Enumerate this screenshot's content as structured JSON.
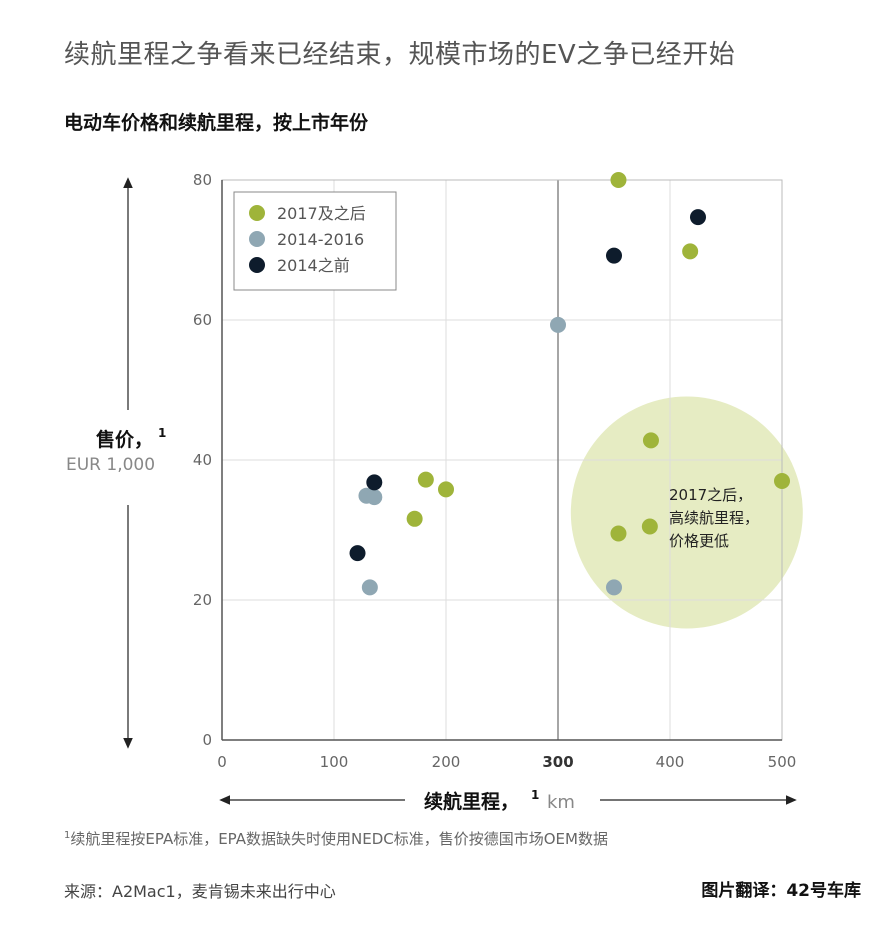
{
  "headline": "续航里程之争看来已经结束，规模市场的EV之争已经开始",
  "footnote": {
    "mark": "1",
    "text": "续航里程按EPA标准，EPA数据缺失时使用NEDC标准，售价按德国市场OEM数据"
  },
  "source": "来源：A2Mac1，麦肯锡未来出行中心",
  "credit": "图片翻译：42号车库",
  "colors": {
    "after_2017": "#9fb43a",
    "y2014_2016": "#8fa7b3",
    "before_2014": "#0e1c2c",
    "highlight_fill": "#e6ecc3",
    "grid": "#dddddd",
    "divider": "#888888"
  },
  "chart_data": {
    "type": "scatter",
    "title": "电动车价格和续航里程，按上市年份",
    "xlabel": "续航里程，",
    "xlabel_sup": "1",
    "xunit": "km",
    "ylabel": "售价，",
    "ylabel_sup": "1",
    "yunit": "EUR 1,000",
    "xlim": [
      0,
      500
    ],
    "ylim": [
      0,
      80
    ],
    "xticks": [
      0,
      100,
      200,
      300,
      400,
      500
    ],
    "yticks": [
      0,
      20,
      40,
      60,
      80
    ],
    "x_highlight_tick": 300,
    "grid": true,
    "legend_position": "top-left",
    "series": [
      {
        "name": "2017及之后",
        "color_key": "after_2017",
        "points": [
          {
            "x": 182,
            "y": 37.2
          },
          {
            "x": 200,
            "y": 35.8
          },
          {
            "x": 172,
            "y": 31.6
          },
          {
            "x": 354,
            "y": 80.0
          },
          {
            "x": 418,
            "y": 69.8
          },
          {
            "x": 383,
            "y": 42.8
          },
          {
            "x": 500,
            "y": 37.0
          },
          {
            "x": 382,
            "y": 30.5
          },
          {
            "x": 354,
            "y": 29.5
          }
        ]
      },
      {
        "name": "2014-2016",
        "color_key": "y2014_2016",
        "points": [
          {
            "x": 129,
            "y": 34.9
          },
          {
            "x": 136,
            "y": 34.7
          },
          {
            "x": 132,
            "y": 21.8
          },
          {
            "x": 300,
            "y": 59.3
          },
          {
            "x": 350,
            "y": 21.8
          }
        ]
      },
      {
        "name": "2014之前",
        "color_key": "before_2014",
        "points": [
          {
            "x": 136,
            "y": 36.8
          },
          {
            "x": 121,
            "y": 26.7
          },
          {
            "x": 350,
            "y": 69.2
          },
          {
            "x": 425,
            "y": 74.7
          }
        ]
      }
    ],
    "annotation": {
      "lines": [
        "2017之后，",
        "高续航里程，",
        "价格更低"
      ],
      "circle_center": {
        "x": 415,
        "y": 32.5
      }
    }
  }
}
